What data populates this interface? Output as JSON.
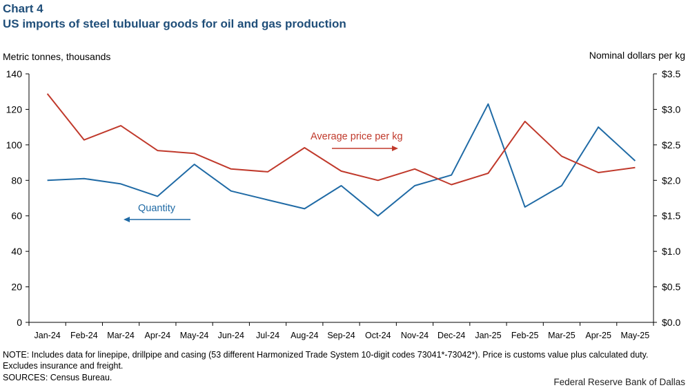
{
  "header": {
    "chart_number": "Chart 4",
    "title": "US imports of steel tubuluar goods for oil and gas production"
  },
  "axes": {
    "left_title": "Metric tonnes, thousands",
    "right_title": "Nominal dollars per kg"
  },
  "footer": {
    "note": "NOTE: Includes data for linepipe, drillpipe and casing (53 different Harmonized Trade System 10-digit codes 73041*-73042*). Price is customs value plus calculated duty. Excludes insurance and freight.",
    "sources": "SOURCES: Census Bureau.",
    "credit": "Federal Reserve Bank of Dallas"
  },
  "colors": {
    "quantity": "#1f6aa5",
    "price": "#c0392b",
    "axis": "#000000"
  },
  "chart_data": {
    "type": "line",
    "categories": [
      "Jan-24",
      "Feb-24",
      "Mar-24",
      "Apr-24",
      "May-24",
      "Jun-24",
      "Jul-24",
      "Aug-24",
      "Sep-24",
      "Oct-24",
      "Nov-24",
      "Dec-24",
      "Jan-25",
      "Feb-25",
      "Mar-25",
      "Apr-25",
      "May-25"
    ],
    "y_left": {
      "ylim": [
        0,
        140
      ],
      "ticks": [
        0,
        20,
        40,
        60,
        80,
        100,
        120,
        140
      ],
      "tick_labels": [
        "0",
        "20",
        "40",
        "60",
        "80",
        "100",
        "120",
        "140"
      ]
    },
    "y_right": {
      "ylim": [
        0,
        3.5
      ],
      "ticks": [
        0,
        0.5,
        1.0,
        1.5,
        2.0,
        2.5,
        3.0,
        3.5
      ],
      "tick_labels": [
        "$0.0",
        "$0.5",
        "$1.0",
        "$1.5",
        "$2.0",
        "$2.5",
        "$3.0",
        "$3.5"
      ]
    },
    "series": [
      {
        "name": "Quantity",
        "axis": "left",
        "values": [
          80,
          81,
          78,
          71,
          89,
          74,
          69,
          64,
          77,
          60,
          77,
          83,
          123,
          65,
          77,
          110,
          91
        ]
      },
      {
        "name": "Average price per kg",
        "axis": "right",
        "values": [
          3.22,
          2.57,
          2.77,
          2.42,
          2.38,
          2.16,
          2.12,
          2.46,
          2.13,
          2.0,
          2.16,
          1.94,
          2.1,
          2.83,
          2.34,
          2.11,
          2.18
        ]
      }
    ],
    "grid": false,
    "legend": "inline-annotations"
  }
}
